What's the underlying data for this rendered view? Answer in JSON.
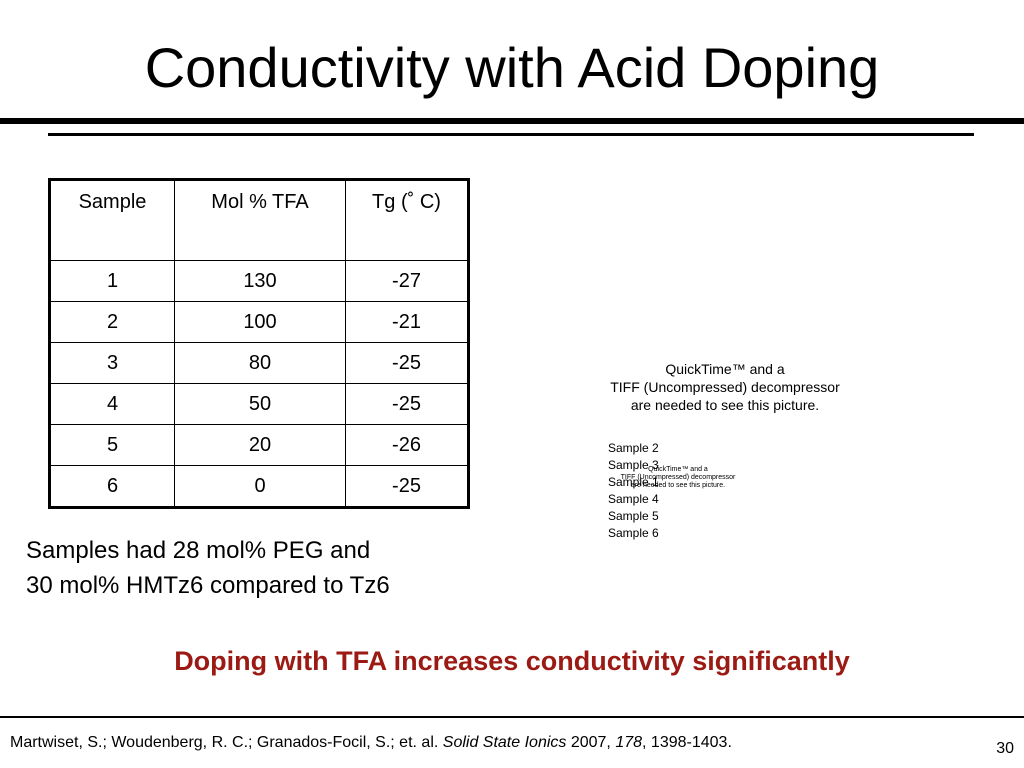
{
  "slide": {
    "title": "Conductivity with Acid Doping",
    "table": {
      "headers": [
        "Sample",
        "Mol % TFA",
        "Tg (˚ C)"
      ],
      "rows": [
        [
          "1",
          "130",
          "-27"
        ],
        [
          "2",
          "100",
          "-21"
        ],
        [
          "3",
          "80",
          "-25"
        ],
        [
          "4",
          "50",
          "-25"
        ],
        [
          "5",
          "20",
          "-26"
        ],
        [
          "6",
          "0",
          "-25"
        ]
      ]
    },
    "note_line1": "Samples had 28 mol% PEG and",
    "note_line2": "30 mol% HMTz6 compared to Tz6",
    "conclusion": "Doping with TFA increases conductivity significantly",
    "placeholder_main": [
      "QuickTime™ and a",
      "TIFF (Uncompressed) decompressor",
      "are needed to see this picture."
    ],
    "placeholder_small": [
      "QuickTime™ and a",
      "TIFF (Uncompressed) decompressor",
      "are needed to see this picture."
    ],
    "legend_samples": [
      "Sample 2",
      "Sample 3",
      "Sample 1",
      "Sample 4",
      "Sample 5",
      "Sample 6"
    ],
    "citation": {
      "authors": "Martwiset, S.; Woudenberg, R. C.; Granados-Focil, S.; et. al. ",
      "journal": "Solid State Ionics",
      "year": " 2007, ",
      "volume": "178",
      "pages": ", 1398-1403."
    },
    "page_number": "30",
    "colors": {
      "accent": "#9b1a14",
      "text": "#000000",
      "background": "#ffffff"
    }
  }
}
